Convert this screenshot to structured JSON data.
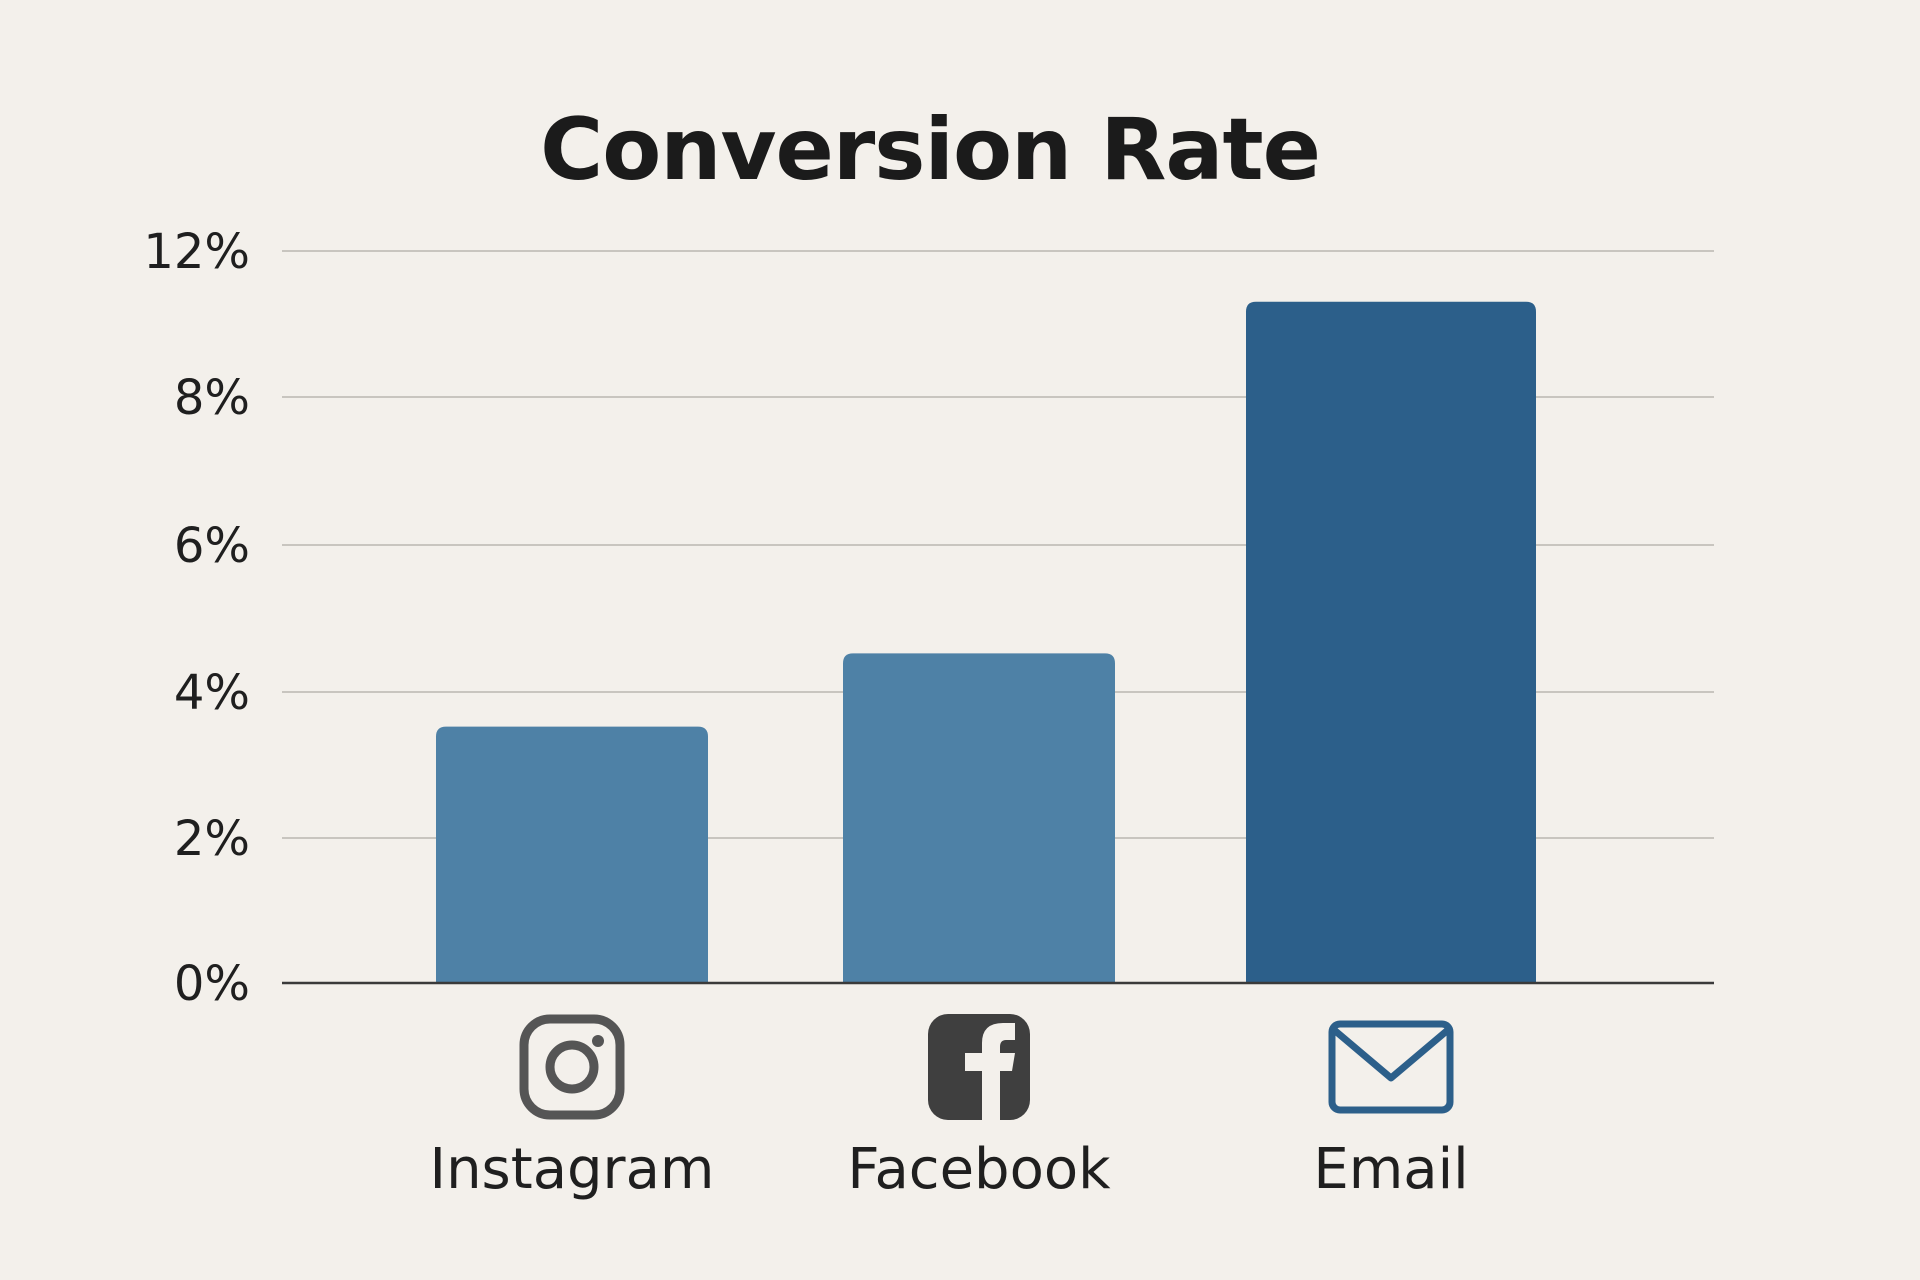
{
  "chart_data": {
    "type": "bar",
    "title": "Conversion Rate",
    "xlabel": "",
    "ylabel": "",
    "categories": [
      "Instagram",
      "Facebook",
      "Email"
    ],
    "values": [
      3.5,
      4.5,
      9.3
    ],
    "ylim": [
      0,
      12
    ],
    "yticks": [
      {
        "value": 0,
        "label": "0%"
      },
      {
        "value": 2,
        "label": "2%"
      },
      {
        "value": 4,
        "label": "4%"
      },
      {
        "value": 6,
        "label": "6%"
      },
      {
        "value": 8,
        "label": "8%"
      },
      {
        "value": 12,
        "label": "12%"
      }
    ],
    "grid": true,
    "bar_colors": [
      "#4e81a6",
      "#4e81a6",
      "#2c5f8a"
    ],
    "icons": [
      "instagram-icon",
      "facebook-icon",
      "email-icon"
    ],
    "icon_colors": [
      "#555555",
      "#3f3f3f",
      "#2c5f8a"
    ]
  }
}
